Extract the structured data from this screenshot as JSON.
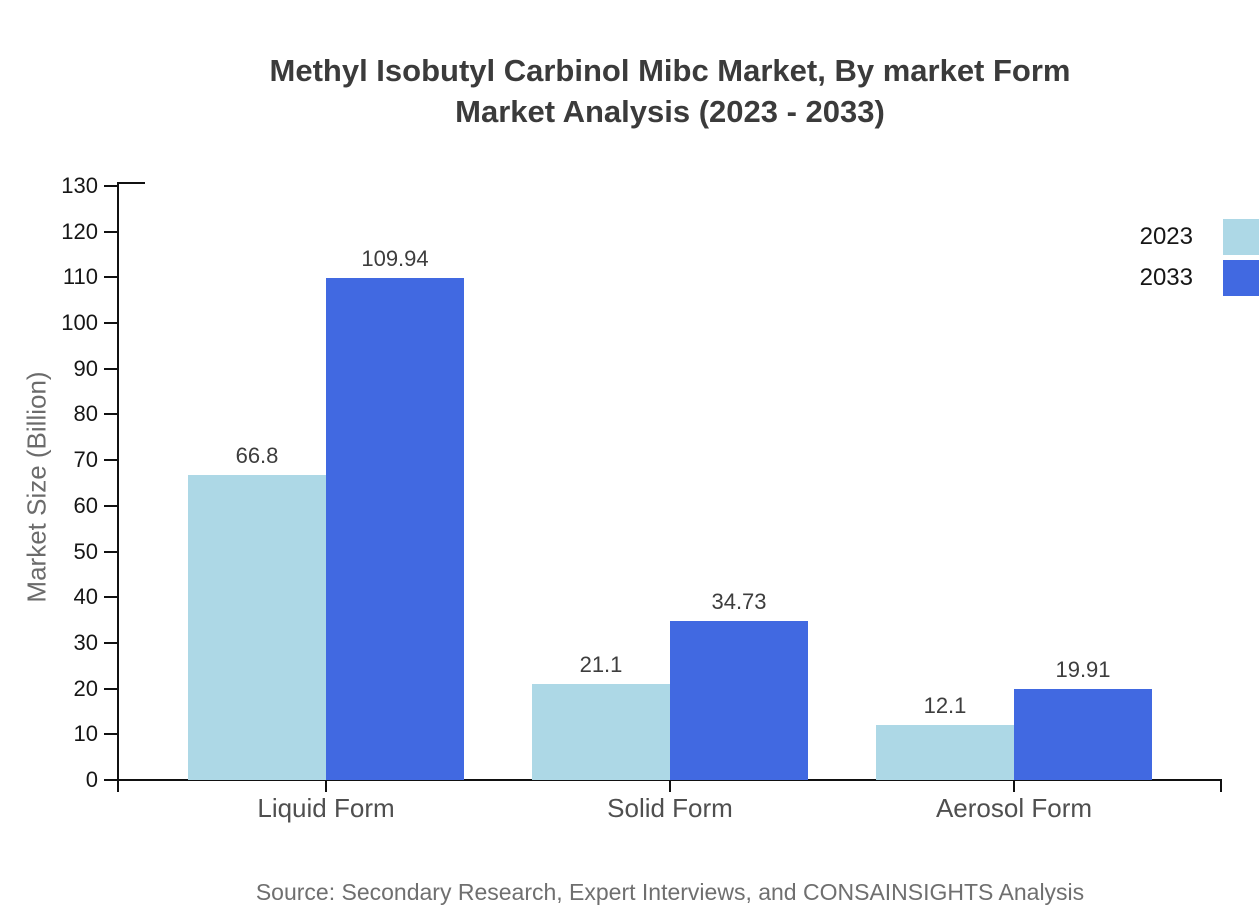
{
  "title": {
    "line1": "Methyl Isobutyl Carbinol Mibc Market, By market Form",
    "line2": "Market Analysis (2023 - 2033)"
  },
  "source_note": "Source: Secondary Research, Expert Interviews, and CONSAINSIGHTS Analysis",
  "chart_data": {
    "type": "bar",
    "title": "Methyl Isobutyl Carbinol Mibc Market, By market Form Market Analysis (2023 - 2033)",
    "categories": [
      "Liquid Form",
      "Solid Form",
      "Aerosol Form"
    ],
    "series": [
      {
        "name": "2023",
        "color": "#ADD8E6",
        "values": [
          66.8,
          21.1,
          12.1
        ]
      },
      {
        "name": "2033",
        "color": "#4169E1",
        "values": [
          109.94,
          34.73,
          19.91
        ]
      }
    ],
    "value_labels": [
      [
        "66.8",
        "21.1",
        "12.1"
      ],
      [
        "109.94",
        "34.73",
        "19.91"
      ]
    ],
    "xlabel": "",
    "ylabel": "Market Size (Billion)",
    "ylim": [
      0,
      130
    ],
    "yticks": [
      0,
      10,
      20,
      30,
      40,
      50,
      60,
      70,
      80,
      90,
      100,
      110,
      120,
      130
    ],
    "grid": false,
    "legend_position": "top-right",
    "axis_color": "#111111"
  }
}
